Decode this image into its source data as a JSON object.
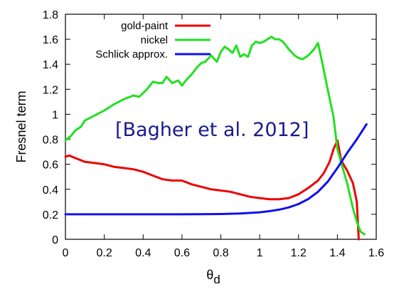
{
  "chart_data": {
    "type": "line",
    "title": "",
    "xlabel": "θ",
    "xlabel_subscript": "d",
    "ylabel": "Fresnel term",
    "xlim": [
      0,
      1.6
    ],
    "ylim": [
      0,
      1.8
    ],
    "x_ticks": [
      "0",
      "0.2",
      "0.4",
      "0.6",
      "0.8",
      "1",
      "1.2",
      "1.4",
      "1.6"
    ],
    "y_ticks": [
      "0",
      "0.2",
      "0.4",
      "0.6",
      "0.8",
      "1",
      "1.2",
      "1.4",
      "1.6",
      "1.8"
    ],
    "x_tick_values": [
      0,
      0.2,
      0.4,
      0.6,
      0.8,
      1.0,
      1.2,
      1.4,
      1.6
    ],
    "y_tick_values": [
      0,
      0.2,
      0.4,
      0.6,
      0.8,
      1.0,
      1.2,
      1.4,
      1.6,
      1.8
    ],
    "grid": false,
    "legend_position": "top-left",
    "annotation": "[Bagher et al. 2012]",
    "series": [
      {
        "name": "gold-paint",
        "color": "#ee0000",
        "x": [
          0,
          0.02,
          0.05,
          0.1,
          0.15,
          0.2,
          0.25,
          0.3,
          0.35,
          0.4,
          0.45,
          0.5,
          0.55,
          0.6,
          0.65,
          0.7,
          0.75,
          0.8,
          0.85,
          0.9,
          0.95,
          1.0,
          1.05,
          1.1,
          1.15,
          1.2,
          1.25,
          1.3,
          1.33,
          1.36,
          1.38,
          1.4,
          1.42,
          1.45,
          1.48,
          1.5,
          1.51
        ],
        "y": [
          0.66,
          0.67,
          0.65,
          0.62,
          0.61,
          0.6,
          0.58,
          0.57,
          0.56,
          0.54,
          0.51,
          0.48,
          0.47,
          0.47,
          0.44,
          0.42,
          0.4,
          0.39,
          0.38,
          0.36,
          0.34,
          0.33,
          0.32,
          0.32,
          0.33,
          0.36,
          0.41,
          0.47,
          0.53,
          0.62,
          0.72,
          0.79,
          0.63,
          0.55,
          0.45,
          0.3,
          0
        ]
      },
      {
        "name": "nickel",
        "color": "#22e022",
        "x": [
          0,
          0.03,
          0.05,
          0.08,
          0.1,
          0.15,
          0.2,
          0.25,
          0.3,
          0.35,
          0.38,
          0.4,
          0.42,
          0.45,
          0.48,
          0.5,
          0.52,
          0.55,
          0.58,
          0.6,
          0.62,
          0.65,
          0.68,
          0.7,
          0.72,
          0.75,
          0.78,
          0.8,
          0.82,
          0.84,
          0.86,
          0.88,
          0.9,
          0.92,
          0.94,
          0.96,
          0.98,
          1.0,
          1.02,
          1.04,
          1.06,
          1.08,
          1.1,
          1.12,
          1.15,
          1.18,
          1.2,
          1.22,
          1.25,
          1.28,
          1.3,
          1.32,
          1.35,
          1.38,
          1.4,
          1.42,
          1.45,
          1.48,
          1.5,
          1.52,
          1.54
        ],
        "y": [
          0.79,
          0.83,
          0.87,
          0.9,
          0.95,
          0.99,
          1.03,
          1.08,
          1.12,
          1.15,
          1.14,
          1.17,
          1.2,
          1.26,
          1.25,
          1.25,
          1.3,
          1.25,
          1.27,
          1.23,
          1.27,
          1.32,
          1.38,
          1.41,
          1.42,
          1.47,
          1.42,
          1.5,
          1.54,
          1.52,
          1.49,
          1.55,
          1.46,
          1.48,
          1.46,
          1.55,
          1.58,
          1.57,
          1.58,
          1.6,
          1.62,
          1.6,
          1.6,
          1.58,
          1.52,
          1.47,
          1.45,
          1.44,
          1.47,
          1.52,
          1.57,
          1.43,
          1.2,
          0.98,
          0.72,
          0.61,
          0.45,
          0.25,
          0.14,
          0.06,
          0.04
        ]
      },
      {
        "name": "Schlick approx.",
        "color": "#1010ee",
        "x": [
          0,
          0.2,
          0.4,
          0.6,
          0.7,
          0.8,
          0.9,
          1.0,
          1.05,
          1.1,
          1.15,
          1.2,
          1.25,
          1.3,
          1.35,
          1.4,
          1.45,
          1.5,
          1.55
        ],
        "y": [
          0.2,
          0.2,
          0.2,
          0.2,
          0.201,
          0.202,
          0.207,
          0.216,
          0.225,
          0.237,
          0.255,
          0.282,
          0.322,
          0.38,
          0.46,
          0.57,
          0.69,
          0.8,
          0.92
        ]
      }
    ]
  }
}
